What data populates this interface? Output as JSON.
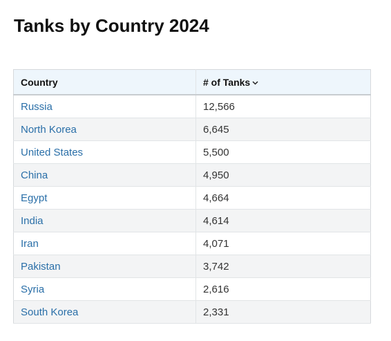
{
  "header": {
    "title": "Tanks by Country 2024"
  },
  "table": {
    "columns": [
      "Country",
      "# of Tanks"
    ],
    "rows": [
      [
        "Russia",
        "12,566"
      ],
      [
        "North Korea",
        "6,645"
      ],
      [
        "United States",
        "5,500"
      ],
      [
        "China",
        "4,950"
      ],
      [
        "Egypt",
        "4,664"
      ],
      [
        "India",
        "4,614"
      ],
      [
        "Iran",
        "4,071"
      ],
      [
        "Pakistan",
        "3,742"
      ],
      [
        "Syria",
        "2,616"
      ],
      [
        "South Korea",
        "2,331"
      ]
    ]
  }
}
